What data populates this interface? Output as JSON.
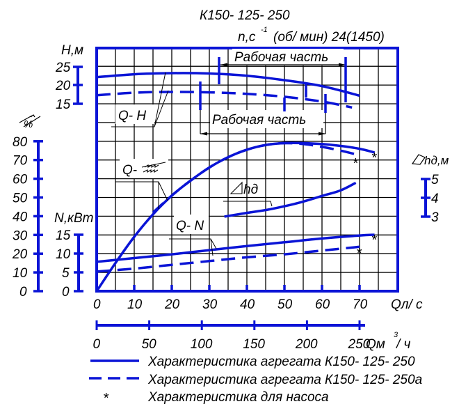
{
  "chart_data": {
    "type": "line",
    "title": "К150- 125- 250",
    "subtitle": "n,с -1 (об/ мин) 24(1450)",
    "speed": {
      "label_prefix": "n,с",
      "superscript": "-1",
      "label_suffix": "(об/ мин) 24(1450)"
    },
    "x_axis": {
      "label": "Qл/ с",
      "ticks": [
        0,
        10,
        20,
        30,
        40,
        50,
        60,
        70
      ],
      "range": [
        0,
        80
      ],
      "grid_step": 5
    },
    "x_axis_secondary": {
      "label": "Qм",
      "label_superscript": "3",
      "label_suffix": "/ ч",
      "ticks": [
        0,
        50,
        100,
        150,
        200,
        250
      ]
    },
    "y_axes": {
      "head": {
        "label": "Н,м",
        "ticks": [
          25,
          20,
          15
        ]
      },
      "efficiency": {
        "label": "%",
        "ticks": [
          80,
          70,
          60,
          50,
          40,
          30,
          20,
          10,
          0
        ]
      },
      "power": {
        "label": "N,кВт",
        "ticks": [
          15,
          10,
          5,
          0
        ]
      },
      "npsh": {
        "label": "hд,м",
        "ticks": [
          5,
          4,
          3
        ]
      }
    },
    "grid": true,
    "curve_labels": {
      "qh": "Q- H",
      "qeta": "Q-",
      "qn": "Q- N",
      "npsh": "hд"
    },
    "working_zone_label": "Рабочая часть",
    "working_zones": [
      {
        "series": "К150-125-250",
        "q_from": 33,
        "q_to": 67
      },
      {
        "series": "К150-125-250а",
        "q_from": 28,
        "q_to": 62
      }
    ],
    "series": [
      {
        "name": "Q-H К150-125-250",
        "style": "solid",
        "unit": "м",
        "x": [
          0,
          10,
          20,
          30,
          40,
          50,
          60,
          70
        ],
        "y": [
          22.2,
          23.0,
          23.3,
          23.2,
          22.6,
          21.4,
          19.8,
          17.2
        ]
      },
      {
        "name": "Q-H К150-125-250а",
        "style": "dashed",
        "unit": "м",
        "x": [
          0,
          10,
          20,
          30,
          40,
          50,
          60,
          68
        ],
        "y": [
          17.3,
          18.0,
          18.2,
          18.1,
          17.7,
          16.9,
          15.6,
          14.0
        ]
      },
      {
        "name": "Q-η К150-125-250",
        "style": "solid",
        "unit": "%",
        "x": [
          0,
          5,
          10,
          15,
          20,
          25,
          30,
          35,
          40,
          45,
          50,
          55,
          60,
          65,
          70,
          74
        ],
        "y": [
          0,
          15,
          29,
          41,
          51,
          59,
          66,
          71.5,
          75.5,
          78,
          79,
          79,
          78.5,
          77.5,
          76,
          74
        ]
      },
      {
        "name": "Q-η К150-125-250а",
        "style": "dashed",
        "unit": "%",
        "x": [
          15,
          20,
          25,
          30,
          35,
          40,
          45,
          50,
          55,
          60,
          65,
          69
        ],
        "y": [
          42,
          51,
          59,
          66,
          71.5,
          75.5,
          78,
          79,
          78.5,
          77,
          75,
          73
        ]
      },
      {
        "name": "Q-N К150-125-250",
        "style": "solid",
        "unit": "кВт",
        "x": [
          0,
          10,
          20,
          30,
          40,
          50,
          60,
          70,
          74
        ],
        "y": [
          7.8,
          8.8,
          9.8,
          10.9,
          12.0,
          13.0,
          14.0,
          14.8,
          15.0
        ]
      },
      {
        "name": "Q-N К150-125-250а",
        "style": "dashed",
        "unit": "кВт",
        "x": [
          0,
          10,
          20,
          30,
          40,
          50,
          60,
          70
        ],
        "y": [
          5.2,
          6.0,
          7.0,
          8.0,
          9.0,
          9.8,
          10.8,
          11.8
        ]
      },
      {
        "name": "Q-Δhд",
        "style": "solid",
        "unit": "м",
        "x": [
          34,
          40,
          45,
          50,
          55,
          60,
          65,
          69
        ],
        "y": [
          3.0,
          3.2,
          3.35,
          3.55,
          3.8,
          4.1,
          4.4,
          4.8
        ]
      }
    ],
    "pump_markers": [
      {
        "series": "Q-η К150-125-250",
        "x": 74,
        "y": 74
      },
      {
        "series": "Q-η К150-125-250а",
        "x": 69,
        "y": 71
      },
      {
        "series": "Q-N К150-125-250",
        "x": 74,
        "y": 15
      },
      {
        "series": "Q-N К150-125-250а",
        "x": 70,
        "y": 11.5
      }
    ],
    "legend": [
      {
        "style": "solid",
        "label": "Характеристика агрегата К150- 125- 250"
      },
      {
        "style": "dashed",
        "label": "Характеристика агрегата К150- 125- 250а"
      },
      {
        "style": "marker",
        "symbol": "*",
        "label": "Характеристика для насоса"
      }
    ],
    "colors": {
      "curve": "#0a14d6",
      "grid": "#000000",
      "text": "#000000"
    }
  }
}
